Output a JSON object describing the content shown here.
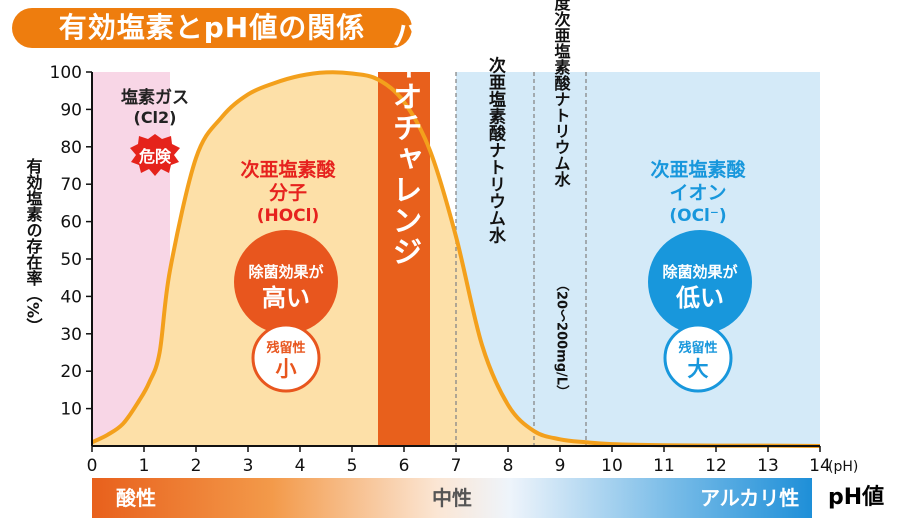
{
  "title": "有効塩素とpH値の関係",
  "chart_data": {
    "type": "area",
    "ylabel": "有効塩素の存在率（%）",
    "xlabel": "(pH)",
    "xlim": [
      0,
      14
    ],
    "ylim": [
      0,
      100
    ],
    "x_ticks": [
      "0",
      "1",
      "2",
      "3",
      "4",
      "5",
      "6",
      "7",
      "8",
      "9",
      "10",
      "11",
      "12",
      "13",
      "14"
    ],
    "y_ticks": [
      "10",
      "20",
      "30",
      "40",
      "50",
      "60",
      "70",
      "80",
      "90",
      "100"
    ],
    "series": [
      {
        "x": [
          0,
          0.3,
          0.6,
          0.9,
          1.1,
          1.3,
          1.5,
          2.0,
          2.5,
          3.0,
          3.5,
          4.0,
          4.5,
          5.0,
          5.5,
          6.0,
          6.5,
          7.0,
          7.5,
          8.0,
          8.5,
          9.0,
          9.5,
          10.0,
          11.0,
          12.0,
          13.0,
          14.0
        ],
        "y": [
          1,
          3,
          6,
          12,
          17,
          25,
          47,
          77,
          88,
          94,
          97,
          99,
          99.9,
          99.6,
          98,
          92,
          79,
          56,
          27,
          11,
          4,
          1.8,
          1,
          0.5,
          0.2,
          0.1,
          0.1,
          0
        ]
      }
    ],
    "regions": {
      "pink_end": 1.5,
      "orange_band": [
        5.5,
        6.5
      ],
      "blue_start": 7.0,
      "dashed_lines": [
        7.0,
        8.5,
        9.5
      ]
    },
    "annotations": {
      "cl2_line1": "塩素ガス",
      "cl2_line2": "(Cl2)",
      "danger": "危険",
      "hocl_line1": "次亜塩素酸",
      "hocl_line2": "分子",
      "hocl_line3": "(HOCl)",
      "hocl_effect_line1": "除菌効果が",
      "hocl_effect_line2": "高い",
      "hocl_residual_line1": "残留性",
      "hocl_residual_line2": "小",
      "biochallenge": "バイオチャレンジ",
      "sodium_hypo": "次亜塩素酸ナトリウム水",
      "high_conc": "高濃度次亜塩素酸ナトリウム水",
      "high_conc_range": "（20〜200mg/L）",
      "ocl_line1": "次亜塩素酸",
      "ocl_line2": "イオン",
      "ocl_line3": "(OCl⁻)",
      "ocl_effect_line1": "除菌効果が",
      "ocl_effect_line2": "低い",
      "ocl_residual_line1": "残留性",
      "ocl_residual_line2": "大"
    }
  },
  "ph_scale": {
    "acid": "酸性",
    "neutral": "中性",
    "alkaline": "アルカリ性",
    "label": "pH値"
  },
  "colors": {
    "title_bg": "#ee7d0e",
    "pink": "#f8d6e6",
    "blue": "#d4eaf8",
    "area_fill": "#fde0a8",
    "curve": "#f3a01c",
    "band": "#e8601c",
    "red_text": "#e6221e",
    "blue_text": "#1897dc"
  }
}
